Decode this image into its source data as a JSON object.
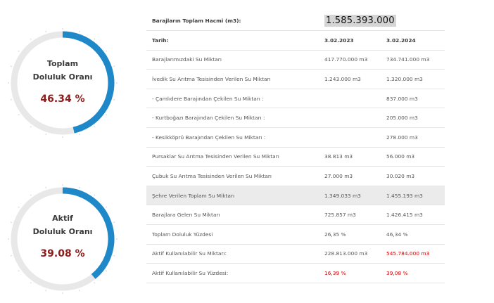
{
  "gauges": [
    {
      "label_line1": "Toplam",
      "label_line2": "Doluluk Oranı",
      "value_text": "46.34 %",
      "percent": 46.34,
      "fill_color": "#1e88c8",
      "track_color": "#e8e8e8"
    },
    {
      "label_line1": "Aktif",
      "label_line2": "Doluluk Oranı",
      "value_text": "39.08 %",
      "percent": 39.08,
      "fill_color": "#1e88c8",
      "track_color": "#e8e8e8"
    }
  ],
  "table": {
    "total": {
      "label": "Barajların Toplam Hacmi (m3):",
      "value": "1.585.393.000"
    },
    "header": {
      "label": "Tarih:",
      "col1": "3.02.2023",
      "col2": "3.02.2024"
    },
    "rows": [
      {
        "label": "Barajlarımızdaki Su Miktarı",
        "col1": "417.770.000 m3",
        "col2": "734.741.000 m3"
      },
      {
        "label": "İvedik Su Arıtma Tesisinden Verilen Su Miktarı",
        "col1": "1.243.000 m3",
        "col2": "1.320.000 m3"
      },
      {
        "label": "- Çamlıdere Barajından Çekilen Su Miktarı :",
        "col1": "",
        "col2": "837.000 m3"
      },
      {
        "label": "- Kurtboğazı Barajından Çekilen Su Miktarı :",
        "col1": "",
        "col2": "205.000 m3"
      },
      {
        "label": "- Kesikköprü Barajından Çekilen Su Miktarı :",
        "col1": "",
        "col2": "278.000 m3"
      },
      {
        "label": "Pursaklar Su Arıtma Tesisinden Verilen Su Miktarı",
        "col1": "38.813 m3",
        "col2": "56.000 m3"
      },
      {
        "label": "Çubuk Su Arıtma Tesisinden Verilen Su Miktarı",
        "col1": "27.000 m3",
        "col2": "30.020 m3"
      },
      {
        "label": "Şehre Verilen Toplam Su Miktarı",
        "col1": "1.349.033 m3",
        "col2": "1.455.193 m3"
      },
      {
        "label": "Barajlara Gelen Su Miktarı",
        "col1": "725.857 m3",
        "col2": "1.426.415 m3"
      },
      {
        "label": "Toplam Doluluk Yüzdesi",
        "col1": "26,35 %",
        "col2": "46,34 %"
      },
      {
        "label": "Aktif Kullanılabilir Su Miktarı:",
        "col1": "228.813.000 m3",
        "col2": "545.784.000 m3"
      },
      {
        "label": "Aktif Kullanılabilir Su Yüzdesi:",
        "col1": "16,39 %",
        "col2": "39,08 %"
      }
    ]
  }
}
